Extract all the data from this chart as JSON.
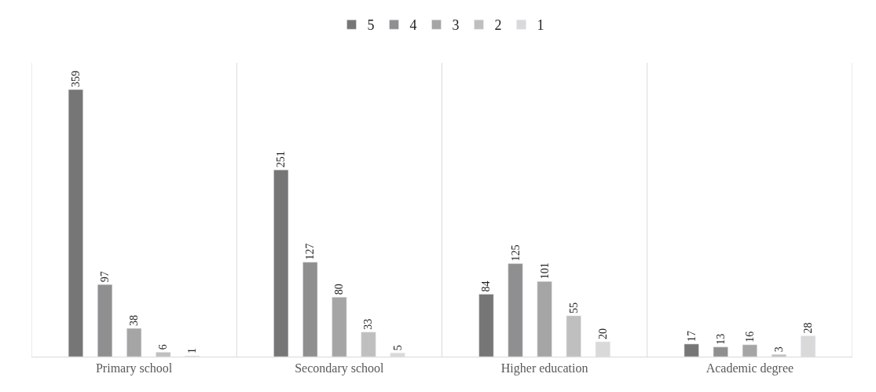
{
  "chart_data": {
    "type": "bar",
    "categories": [
      "Primary school",
      "Secondary school",
      "Higher education",
      "Academic degree"
    ],
    "series": [
      {
        "name": "5",
        "color": "#767676",
        "values": [
          359,
          251,
          84,
          17
        ]
      },
      {
        "name": "4",
        "color": "#8f8f8f",
        "values": [
          97,
          127,
          125,
          13
        ]
      },
      {
        "name": "3",
        "color": "#a5a5a5",
        "values": [
          38,
          80,
          101,
          16
        ]
      },
      {
        "name": "2",
        "color": "#bfbfbf",
        "values": [
          6,
          33,
          55,
          3
        ]
      },
      {
        "name": "1",
        "color": "#d9d9d9",
        "values": [
          1,
          5,
          20,
          28
        ]
      }
    ],
    "data_labels": true,
    "grid": "x",
    "legend": "top"
  }
}
